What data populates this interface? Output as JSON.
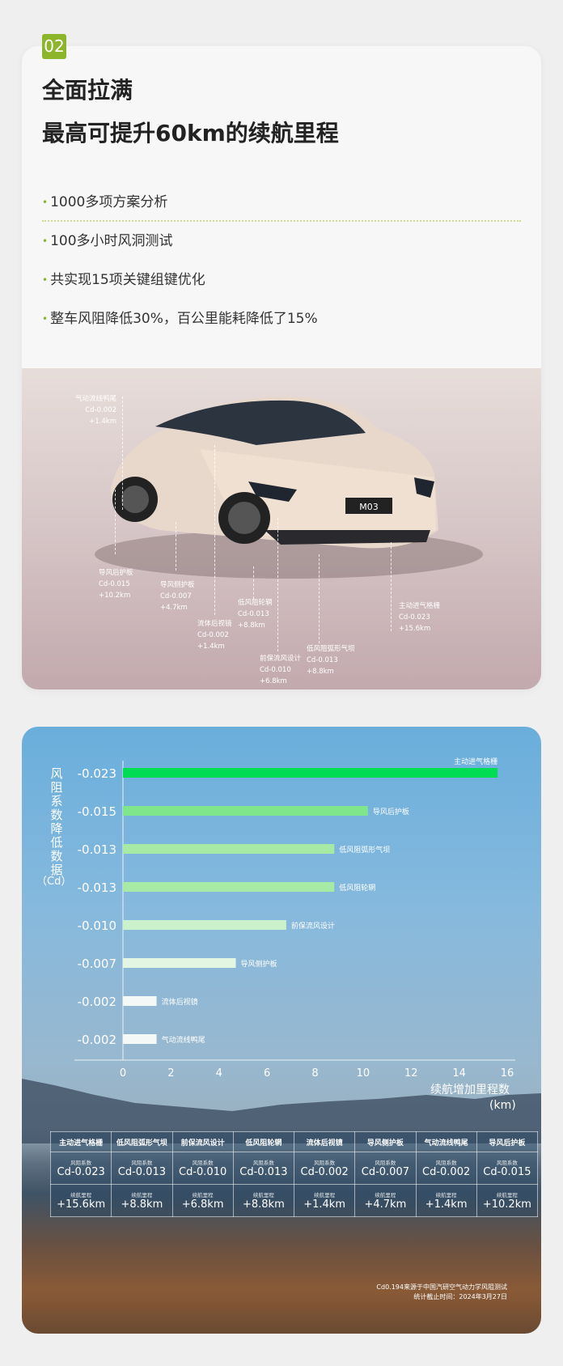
{
  "badge": "02",
  "title": {
    "line1": "全面拉满",
    "line2": "最高可提升60km的续航里程"
  },
  "bullets": [
    "1000多项方案分析",
    "100多小时风洞测试",
    "共实现15项关键组键优化",
    "整车风阻降低30%，百公里能耗降低了15%"
  ],
  "car": {
    "plate": "M03",
    "annotations": [
      {
        "name": "气动流线鸭尾",
        "cd": "Cd-0.002",
        "km": "+1.4km"
      },
      {
        "name": "导风后护板",
        "cd": "Cd-0.015",
        "km": "+10.2km"
      },
      {
        "name": "导风侧护板",
        "cd": "Cd-0.007",
        "km": "+4.7km"
      },
      {
        "name": "流体后视镜",
        "cd": "Cd-0.002",
        "km": "+1.4km"
      },
      {
        "name": "低风阻轮辋",
        "cd": "Cd-0.013",
        "km": "+8.8km"
      },
      {
        "name": "前保流风设计",
        "cd": "Cd-0.010",
        "km": "+6.8km"
      },
      {
        "name": "低风阻弧形气坝",
        "cd": "Cd-0.013",
        "km": "+8.8km"
      },
      {
        "name": "主动进气格栅",
        "cd": "Cd-0.023",
        "km": "+15.6km"
      }
    ]
  },
  "chart_data": {
    "type": "bar",
    "orientation": "horizontal",
    "ylabel": "风阻系数降低数据",
    "yunit": "（Cd）",
    "xlabel": "续航增加里程数",
    "xunit": "(km)",
    "xlim": [
      0,
      16
    ],
    "xticks": [
      0,
      2,
      4,
      6,
      8,
      10,
      12,
      14,
      16
    ],
    "categories": [
      "-0.023",
      "-0.015",
      "-0.013",
      "-0.013",
      "-0.010",
      "-0.007",
      "-0.002",
      "-0.002"
    ],
    "bar_labels": [
      "主动进气格栅",
      "导风后护板",
      "低风阻弧形气坝",
      "低风阻轮辋",
      "前保流风设计",
      "导风侧护板",
      "流体后视镜",
      "气动流线鸭尾"
    ],
    "values": [
      15.6,
      10.2,
      8.8,
      8.8,
      6.8,
      4.7,
      1.4,
      1.4
    ],
    "colors": [
      "#00dd55",
      "#7fe68c",
      "#a6eaa6",
      "#a6eaa6",
      "#cbf1cc",
      "#e2f6e2",
      "#f4f8f6",
      "#f4f8f6"
    ]
  },
  "table": {
    "cd_label": "风阻系数",
    "km_label": "续航里程",
    "columns": [
      {
        "name": "主动进气格栅",
        "cd": "Cd-0.023",
        "km": "+15.6km"
      },
      {
        "name": "低风阻弧形气坝",
        "cd": "Cd-0.013",
        "km": "+8.8km"
      },
      {
        "name": "前保流风设计",
        "cd": "Cd-0.010",
        "km": "+6.8km"
      },
      {
        "name": "低风阻轮辋",
        "cd": "Cd-0.013",
        "km": "+8.8km"
      },
      {
        "name": "流体后视镜",
        "cd": "Cd-0.002",
        "km": "+1.4km"
      },
      {
        "name": "导风侧护板",
        "cd": "Cd-0.007",
        "km": "+4.7km"
      },
      {
        "name": "气动流线鸭尾",
        "cd": "Cd-0.002",
        "km": "+1.4km"
      },
      {
        "name": "导风后护板",
        "cd": "Cd-0.015",
        "km": "+10.2km"
      }
    ]
  },
  "footer": {
    "line1": "Cd0.194来源于中国汽研空气动力学风阻测试",
    "line2": "统计截止时间：2024年3月27日"
  }
}
